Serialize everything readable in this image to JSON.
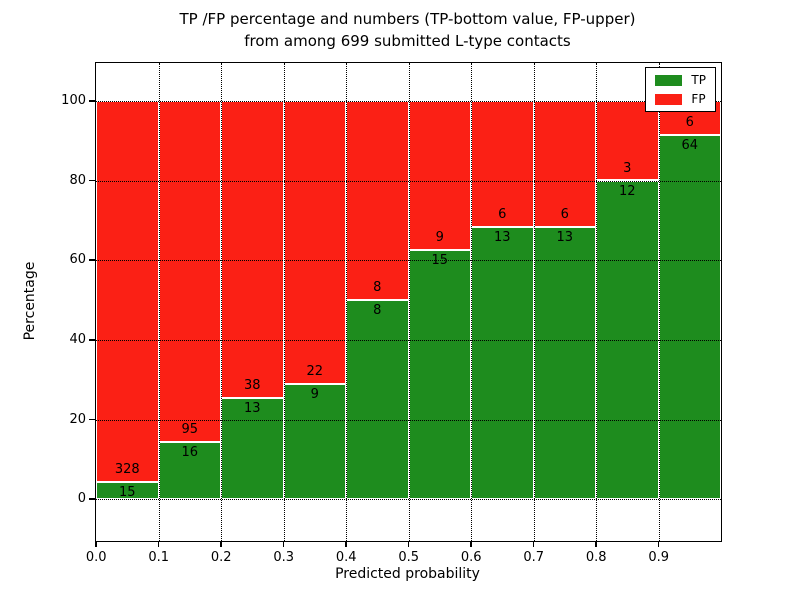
{
  "chart_data": {
    "type": "bar",
    "stacked": true,
    "title_line1": "TP /FP percentage and numbers (TP-bottom value, FP-upper)",
    "title_line2": "from among 699 submitted L-type contacts",
    "xlabel": "Predicted probability",
    "ylabel": "Percentage",
    "categories": [
      "0.0",
      "0.1",
      "0.2",
      "0.3",
      "0.4",
      "0.5",
      "0.6",
      "0.7",
      "0.8",
      "0.9"
    ],
    "series": [
      {
        "name": "TP",
        "color": "#1e8c1e",
        "values": [
          15,
          16,
          13,
          9,
          8,
          15,
          13,
          13,
          12,
          64
        ]
      },
      {
        "name": "FP",
        "color": "#fb2015",
        "values": [
          328,
          95,
          38,
          22,
          8,
          9,
          6,
          6,
          3,
          6
        ]
      }
    ],
    "value_mode": "each bar normalized to 100%, TP percent = TP/(TP+FP)*100",
    "tp_percent": [
      4.37,
      14.41,
      25.49,
      29.03,
      50.0,
      62.5,
      68.42,
      68.42,
      80.0,
      91.43
    ],
    "yticks": [
      0,
      20,
      40,
      60,
      80,
      100
    ],
    "xticks": [
      "0.0",
      "0.1",
      "0.2",
      "0.3",
      "0.4",
      "0.5",
      "0.6",
      "0.7",
      "0.8",
      "0.9"
    ],
    "xlim": [
      0.0,
      1.0
    ],
    "ylim": [
      -10.5,
      109.5
    ],
    "grid": "dotted black, horizontal at yticks and vertical at xticks",
    "legend_position": "upper right",
    "bar_edge_color": "#ffffff",
    "text_color": "#000000",
    "background_color": "#ffffff"
  }
}
